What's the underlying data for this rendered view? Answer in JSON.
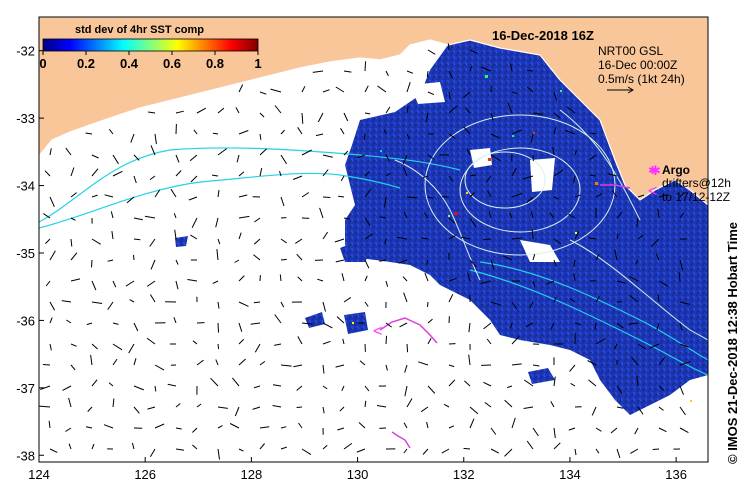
{
  "map": {
    "title": "16-Dec-2018 16Z",
    "x_ticks": [
      "124",
      "126",
      "128",
      "130",
      "132",
      "134",
      "136"
    ],
    "y_ticks": [
      "-32",
      "-33",
      "-34",
      "-35",
      "-36",
      "-37",
      "-38"
    ],
    "lon_range": [
      124,
      136.6
    ],
    "lat_range": [
      -31.5,
      -38.1
    ],
    "colors": {
      "land": "#f9c699",
      "coastline": "#ffffff",
      "sst_high": "#1a2f9a",
      "sst_mid": "#1e3fd0",
      "current": "#22d3e6",
      "contour": "#d8f0e8",
      "argo": "#ff33ff",
      "drifter": "#dd3ddd",
      "arrow": "#000000"
    }
  },
  "colorbar": {
    "title": "std dev of 4hr SST comp",
    "ticks": [
      "0",
      "0.2",
      "0.4",
      "0.6",
      "0.8",
      "1"
    ],
    "colors": [
      "#00007f",
      "#0000ff",
      "#007fff",
      "#00ffff",
      "#7fff7f",
      "#ffff00",
      "#ff7f00",
      "#ff0000",
      "#7f0000"
    ]
  },
  "legend": {
    "product": "NRT00 GSL",
    "time": "16-Dec 00:00Z",
    "scale": "0.5m/s (1kt 24h)",
    "argo_label": "Argo",
    "drifter_label_1": "drifters@12h",
    "drifter_label_2": "to 17/12-12Z"
  },
  "credit": "© IMOS 21-Dec-2018 12:38 Hobart Time"
}
